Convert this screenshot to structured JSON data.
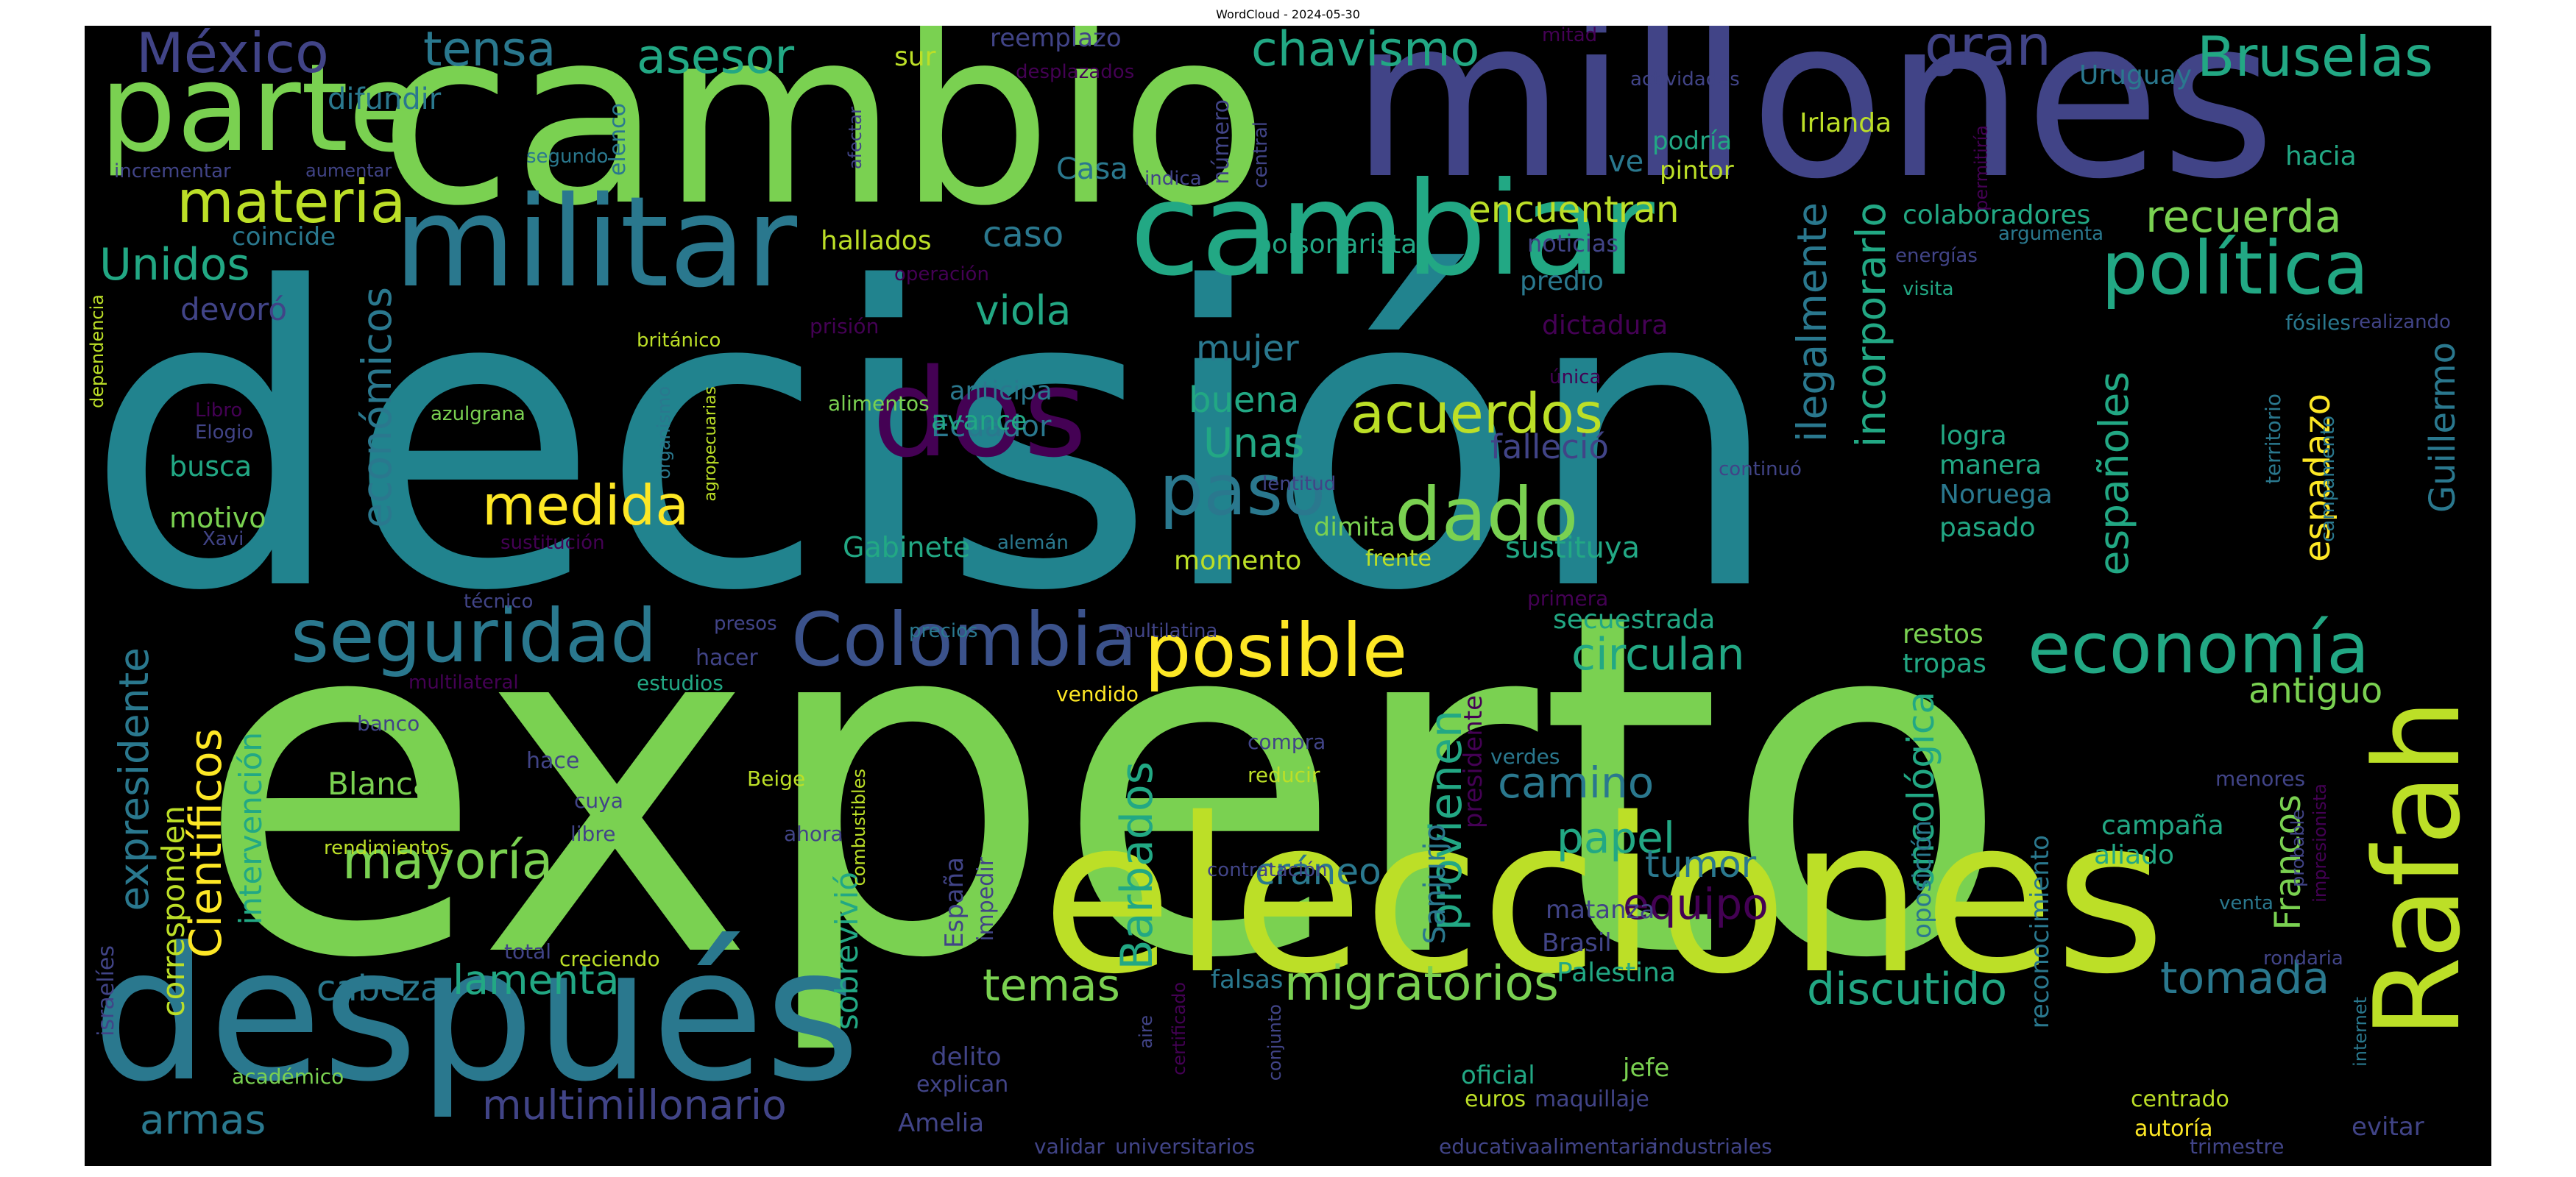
{
  "title": "WordCloud - 2024-05-30",
  "colors": {
    "background": "#000000"
  },
  "words": [
    {
      "text": "decisión",
      "color": "#21838E"
    },
    {
      "text": "experto",
      "color": "#7AD151"
    },
    {
      "text": "cambio",
      "color": "#7AD151"
    },
    {
      "text": "millones",
      "color": "#414487"
    },
    {
      "text": "elecciones",
      "color": "#BCDF27"
    },
    {
      "text": "después",
      "color": "#2A788E"
    },
    {
      "text": "Rafah",
      "color": "#BCDF27"
    },
    {
      "text": "parte",
      "color": "#7AD151"
    },
    {
      "text": "militar",
      "color": "#2A788E"
    },
    {
      "text": "cambiar",
      "color": "#22A884"
    },
    {
      "text": "dos",
      "color": "#440154"
    },
    {
      "text": "Colombia",
      "color": "#3B528B"
    },
    {
      "text": "economía",
      "color": "#22A884"
    },
    {
      "text": "posible",
      "color": "#FDE725"
    },
    {
      "text": "seguridad",
      "color": "#2A788E"
    },
    {
      "text": "política",
      "color": "#22A884"
    },
    {
      "text": "materia",
      "color": "#BCDF27"
    },
    {
      "text": "paso",
      "color": "#2A788E"
    },
    {
      "text": "dado",
      "color": "#7AD151"
    },
    {
      "text": "medida",
      "color": "#FDE725"
    },
    {
      "text": "acuerdos",
      "color": "#BCDF27"
    },
    {
      "text": "Bruselas",
      "color": "#22A884"
    },
    {
      "text": "México",
      "color": "#414487"
    },
    {
      "text": "tensa",
      "color": "#2A788E"
    },
    {
      "text": "asesor",
      "color": "#22A884"
    },
    {
      "text": "chavismo",
      "color": "#22A884"
    },
    {
      "text": "gran",
      "color": "#414487"
    },
    {
      "text": "Unidos",
      "color": "#22A884"
    },
    {
      "text": "mayoría",
      "color": "#7AD151"
    },
    {
      "text": "migratorios",
      "color": "#7AD151"
    },
    {
      "text": "discutido",
      "color": "#22A884"
    },
    {
      "text": "tomada",
      "color": "#2A788E"
    },
    {
      "text": "temas",
      "color": "#7AD151"
    },
    {
      "text": "lamenta",
      "color": "#22A884"
    },
    {
      "text": "multimillonario",
      "color": "#414487"
    },
    {
      "text": "armas",
      "color": "#2A788E"
    },
    {
      "text": "cabeza",
      "color": "#2A788E"
    },
    {
      "text": "circulan",
      "color": "#22A884"
    },
    {
      "text": "camino",
      "color": "#2A788E"
    },
    {
      "text": "papel",
      "color": "#22A884"
    },
    {
      "text": "equipo",
      "color": "#440154"
    },
    {
      "text": "tumor",
      "color": "#2A788E"
    },
    {
      "text": "cráneo",
      "color": "#2A788E"
    },
    {
      "text": "recuerda",
      "color": "#7AD151"
    },
    {
      "text": "encuentran",
      "color": "#BCDF27"
    },
    {
      "text": "viola",
      "color": "#22A884"
    },
    {
      "text": "caso",
      "color": "#2A788E"
    },
    {
      "text": "Unas",
      "color": "#22A884"
    },
    {
      "text": "buena",
      "color": "#22A884"
    },
    {
      "text": "mujer",
      "color": "#2A788E"
    },
    {
      "text": "Barbados",
      "color": "#22A884"
    },
    {
      "text": "provienen",
      "color": "#22A884"
    },
    {
      "text": "ilegalmente",
      "color": "#2A788E"
    },
    {
      "text": "incorporarlo",
      "color": "#22A884"
    },
    {
      "text": "españoles",
      "color": "#22A884"
    },
    {
      "text": "oncológica",
      "color": "#22A884"
    },
    {
      "text": "Francos",
      "color": "#7AD151"
    },
    {
      "text": "antiguo",
      "color": "#7AD151"
    },
    {
      "text": "Guillermo",
      "color": "#2A788E"
    },
    {
      "text": "espadazo",
      "color": "#FDE725"
    },
    {
      "text": "económicos",
      "color": "#2A788E"
    },
    {
      "text": "Científicos",
      "color": "#FDE725"
    },
    {
      "text": "expresidente",
      "color": "#2A788E"
    },
    {
      "text": "intervención",
      "color": "#22A884"
    },
    {
      "text": "corresponden",
      "color": "#BCDF27"
    },
    {
      "text": "sobrevivió",
      "color": "#22A884"
    },
    {
      "text": "Blanca",
      "color": "#7AD151"
    },
    {
      "text": "devoró",
      "color": "#414487"
    },
    {
      "text": "busca",
      "color": "#22A884"
    },
    {
      "text": "motivo",
      "color": "#7AD151"
    },
    {
      "text": "Gabinete",
      "color": "#22A884"
    },
    {
      "text": "momento",
      "color": "#BCDF27"
    },
    {
      "text": "dimita",
      "color": "#7AD151"
    },
    {
      "text": "frente",
      "color": "#BCDF27"
    },
    {
      "text": "sustituya",
      "color": "#22A884"
    },
    {
      "text": "falleció",
      "color": "#414487"
    },
    {
      "text": "anticipa",
      "color": "#2A788E"
    },
    {
      "text": "Ecuador",
      "color": "#2A788E"
    },
    {
      "text": "avance",
      "color": "#22A884"
    },
    {
      "text": "logra",
      "color": "#22A884"
    },
    {
      "text": "manera",
      "color": "#22A884"
    },
    {
      "text": "Noruega",
      "color": "#2A788E"
    },
    {
      "text": "pasado",
      "color": "#22A884"
    },
    {
      "text": "secuestrada",
      "color": "#22A884"
    },
    {
      "text": "restos",
      "color": "#7AD151"
    },
    {
      "text": "tropas",
      "color": "#22A884"
    },
    {
      "text": "colaboradores",
      "color": "#22A884"
    },
    {
      "text": "hallados",
      "color": "#BCDF27"
    },
    {
      "text": "bolsonarista",
      "color": "#22A884"
    },
    {
      "text": "noticias",
      "color": "#414487"
    },
    {
      "text": "predio",
      "color": "#2A788E"
    },
    {
      "text": "dictadura",
      "color": "#440154"
    },
    {
      "text": "Casa",
      "color": "#2A788E"
    },
    {
      "text": "hacia",
      "color": "#22A884"
    },
    {
      "text": "Uruguay",
      "color": "#2A788E"
    },
    {
      "text": "Irlanda",
      "color": "#BCDF27"
    },
    {
      "text": "difundir",
      "color": "#2A788E"
    },
    {
      "text": "coincide",
      "color": "#2A788E"
    },
    {
      "text": "sur",
      "color": "#BCDF27"
    },
    {
      "text": "reemplazo",
      "color": "#414487"
    },
    {
      "text": "ve",
      "color": "#2A788E"
    },
    {
      "text": "podría",
      "color": "#22A884"
    },
    {
      "text": "pintor",
      "color": "#BCDF27"
    },
    {
      "text": "campaña",
      "color": "#22A884"
    },
    {
      "text": "aliado",
      "color": "#22A884"
    },
    {
      "text": "Sanjurjo",
      "color": "#2A788E"
    },
    {
      "text": "Palestina",
      "color": "#22A884"
    },
    {
      "text": "Brasil",
      "color": "#414487"
    },
    {
      "text": "matanza",
      "color": "#414487"
    },
    {
      "text": "oposición",
      "color": "#2A788E"
    },
    {
      "text": "reconocimiento",
      "color": "#2A788E"
    },
    {
      "text": "presidente",
      "color": "#440154"
    },
    {
      "text": "España",
      "color": "#414487"
    },
    {
      "text": "impedir",
      "color": "#414487"
    },
    {
      "text": "delito",
      "color": "#414487"
    },
    {
      "text": "explican",
      "color": "#414487"
    },
    {
      "text": "Amelia",
      "color": "#414487"
    },
    {
      "text": "falsas",
      "color": "#2A788E"
    },
    {
      "text": "jefe",
      "color": "#7AD151"
    },
    {
      "text": "oficial",
      "color": "#22A884"
    },
    {
      "text": "euros",
      "color": "#BCDF27"
    },
    {
      "text": "maquillaje",
      "color": "#414487"
    },
    {
      "text": "centrado",
      "color": "#BCDF27"
    },
    {
      "text": "evitar",
      "color": "#414487"
    },
    {
      "text": "autoría",
      "color": "#FDE725"
    },
    {
      "text": "trimestre",
      "color": "#414487"
    },
    {
      "text": "industriales",
      "color": "#414487"
    },
    {
      "text": "educativaalimentaria",
      "color": "#414487"
    },
    {
      "text": "universitarios",
      "color": "#414487"
    },
    {
      "text": "validar",
      "color": "#414487"
    },
    {
      "text": "académico",
      "color": "#7AD151"
    },
    {
      "text": "israelíes",
      "color": "#414487"
    },
    {
      "text": "rendimientos",
      "color": "#BCDF27"
    },
    {
      "text": "creciendo",
      "color": "#BCDF27"
    },
    {
      "text": "total",
      "color": "#414487"
    },
    {
      "text": "banco",
      "color": "#414487"
    },
    {
      "text": "hace",
      "color": "#414487"
    },
    {
      "text": "cuya",
      "color": "#414487"
    },
    {
      "text": "libre",
      "color": "#414487"
    },
    {
      "text": "ahora",
      "color": "#414487"
    },
    {
      "text": "Beige",
      "color": "#BCDF27"
    },
    {
      "text": "combustibles",
      "color": "#BCDF27"
    },
    {
      "text": "vendido",
      "color": "#FDE725"
    },
    {
      "text": "compra",
      "color": "#414487"
    },
    {
      "text": "reducir",
      "color": "#BCDF27"
    },
    {
      "text": "contratación",
      "color": "#414487"
    },
    {
      "text": "verdes",
      "color": "#2A788E"
    },
    {
      "text": "precios",
      "color": "#2A788E"
    },
    {
      "text": "multilatina",
      "color": "#414487"
    },
    {
      "text": "primera",
      "color": "#440154"
    },
    {
      "text": "técnico",
      "color": "#414487"
    },
    {
      "text": "presos",
      "color": "#414487"
    },
    {
      "text": "hacer",
      "color": "#414487"
    },
    {
      "text": "multilateral",
      "color": "#440154"
    },
    {
      "text": "estudios",
      "color": "#22A884"
    },
    {
      "text": "sustitución",
      "color": "#440154"
    },
    {
      "text": "Xavi",
      "color": "#414487"
    },
    {
      "text": "alemán",
      "color": "#2A788E"
    },
    {
      "text": "lentitud",
      "color": "#414487"
    },
    {
      "text": "continuó",
      "color": "#414487"
    },
    {
      "text": "Elogio",
      "color": "#414487"
    },
    {
      "text": "Libro",
      "color": "#440154"
    },
    {
      "text": "azulgrana",
      "color": "#7AD151"
    },
    {
      "text": "organismo",
      "color": "#2A788E"
    },
    {
      "text": "agropecuarias",
      "color": "#BCDF27"
    },
    {
      "text": "alimentos",
      "color": "#7AD151"
    },
    {
      "text": "prisión",
      "color": "#440154"
    },
    {
      "text": "británico",
      "color": "#BCDF27"
    },
    {
      "text": "dependencia",
      "color": "#BCDF27"
    },
    {
      "text": "operación",
      "color": "#440154"
    },
    {
      "text": "única",
      "color": "#440154"
    },
    {
      "text": "territorio",
      "color": "#2A788E"
    },
    {
      "text": "campamento",
      "color": "#2A788E"
    },
    {
      "text": "fósiles",
      "color": "#2A788E"
    },
    {
      "text": "realizando",
      "color": "#414487"
    },
    {
      "text": "visita",
      "color": "#22A884"
    },
    {
      "text": "energías",
      "color": "#414487"
    },
    {
      "text": "argumenta",
      "color": "#2A788E"
    },
    {
      "text": "permitiría",
      "color": "#440154"
    },
    {
      "text": "actividades",
      "color": "#414487"
    },
    {
      "text": "mitad",
      "color": "#440154"
    },
    {
      "text": "desplazados",
      "color": "#440154"
    },
    {
      "text": "número",
      "color": "#414487"
    },
    {
      "text": "central",
      "color": "#414487"
    },
    {
      "text": "indica",
      "color": "#414487"
    },
    {
      "text": "afectar",
      "color": "#414487"
    },
    {
      "text": "elenco",
      "color": "#2A788E"
    },
    {
      "text": "segundo",
      "color": "#2A788E"
    },
    {
      "text": "incrementar",
      "color": "#414487"
    },
    {
      "text": "aumentar",
      "color": "#414487"
    },
    {
      "text": "menores",
      "color": "#414487"
    },
    {
      "text": "venta",
      "color": "#2A788E"
    },
    {
      "text": "impresionista",
      "color": "#440154"
    },
    {
      "text": "probable",
      "color": "#414487"
    },
    {
      "text": "rondaria",
      "color": "#414487"
    },
    {
      "text": "internet",
      "color": "#2A788E"
    },
    {
      "text": "aire",
      "color": "#414487"
    },
    {
      "text": "certificado",
      "color": "#440154"
    },
    {
      "text": "conjunto",
      "color": "#414487"
    }
  ]
}
